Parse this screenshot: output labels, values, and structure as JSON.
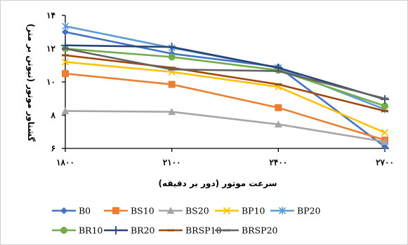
{
  "chart_data": {
    "type": "line",
    "title": "",
    "xlabel": "سرعت موتور (دور بر دقیقه)",
    "ylabel": "گشتاور موتور (نیوتن بر متر)",
    "x": [
      1800,
      2100,
      2400,
      2700
    ],
    "x_tick_labels": [
      "۱۸۰۰",
      "۲۱۰۰",
      "۲۴۰۰",
      "۲۷۰۰"
    ],
    "y_ticks": [
      6,
      8,
      10,
      12,
      14
    ],
    "y_tick_labels": [
      "۶",
      "۸",
      "۱۰",
      "۱۲",
      "۱۴"
    ],
    "ylim": [
      6,
      14
    ],
    "grid": false,
    "legend_position": "bottom",
    "series": [
      {
        "name": "B0",
        "values": [
          13.0,
          11.7,
          10.9,
          6.1
        ],
        "color": "#4472C4",
        "marker": "diamond"
      },
      {
        "name": "BS10",
        "values": [
          10.5,
          9.85,
          8.45,
          6.5
        ],
        "color": "#ED7D31",
        "marker": "square"
      },
      {
        "name": "BS20",
        "values": [
          8.25,
          8.2,
          7.45,
          6.4
        ],
        "color": "#A5A5A5",
        "marker": "triangle"
      },
      {
        "name": "BP10",
        "values": [
          11.2,
          10.6,
          9.7,
          6.95
        ],
        "color": "#FFC000",
        "marker": "x"
      },
      {
        "name": "BP20",
        "values": [
          13.35,
          12.05,
          10.85,
          8.35
        ],
        "color": "#5B9BD5",
        "marker": "star"
      },
      {
        "name": "BR10",
        "values": [
          12.0,
          11.5,
          10.7,
          8.55
        ],
        "color": "#70AD47",
        "marker": "circle"
      },
      {
        "name": "BR20",
        "values": [
          12.2,
          12.1,
          10.85,
          8.95
        ],
        "color": "#264478",
        "marker": "plus"
      },
      {
        "name": "BRSP10",
        "values": [
          11.6,
          10.85,
          9.85,
          8.25
        ],
        "color": "#9E480E",
        "marker": "dash"
      },
      {
        "name": "BRSP20",
        "values": [
          12.0,
          10.75,
          10.65,
          9.0
        ],
        "color": "#636363",
        "marker": "dash"
      }
    ]
  }
}
